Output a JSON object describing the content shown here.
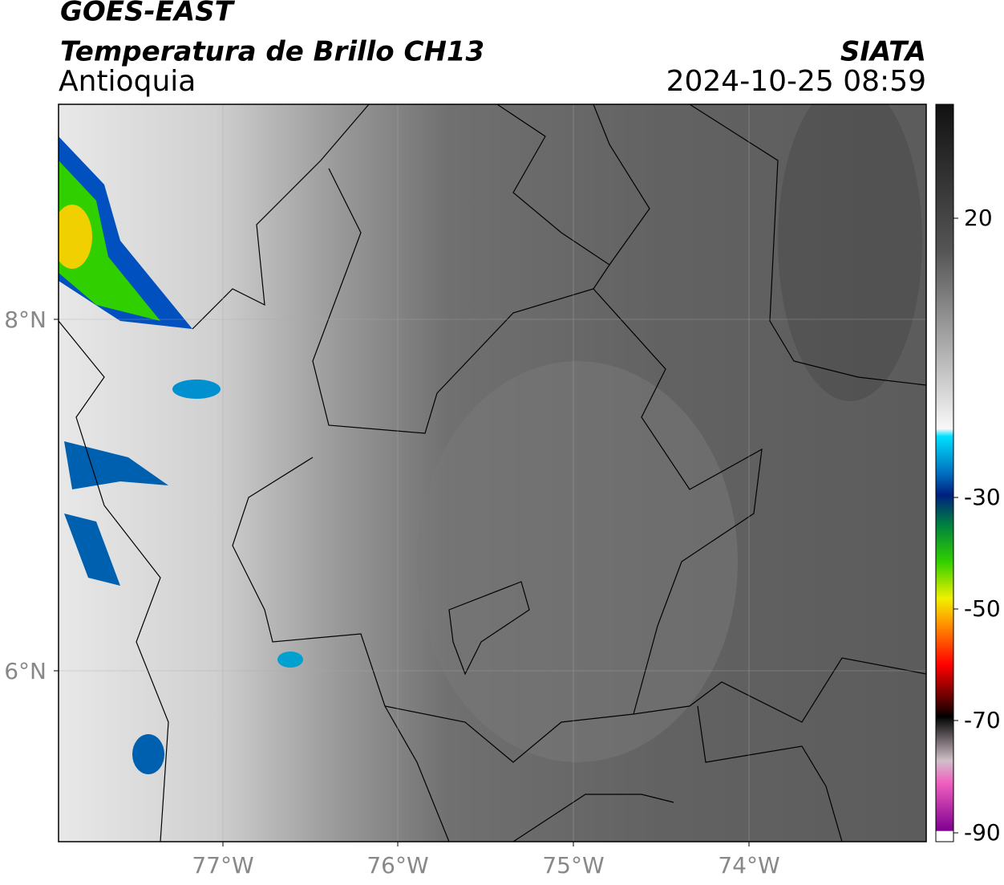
{
  "header": {
    "title": "GOES-EAST",
    "subtitle": "Temperatura de Brillo CH13",
    "region": "Antioquia",
    "source": "SIATA",
    "datetime": "2024-10-25 08:59"
  },
  "map": {
    "lat_labels": [
      "8°N",
      "6°N"
    ],
    "lon_labels": [
      "77°W",
      "76°W",
      "75°W",
      "74°W"
    ]
  },
  "colorbar": {
    "ticks": [
      20,
      -30,
      -50,
      -70,
      -90
    ]
  }
}
